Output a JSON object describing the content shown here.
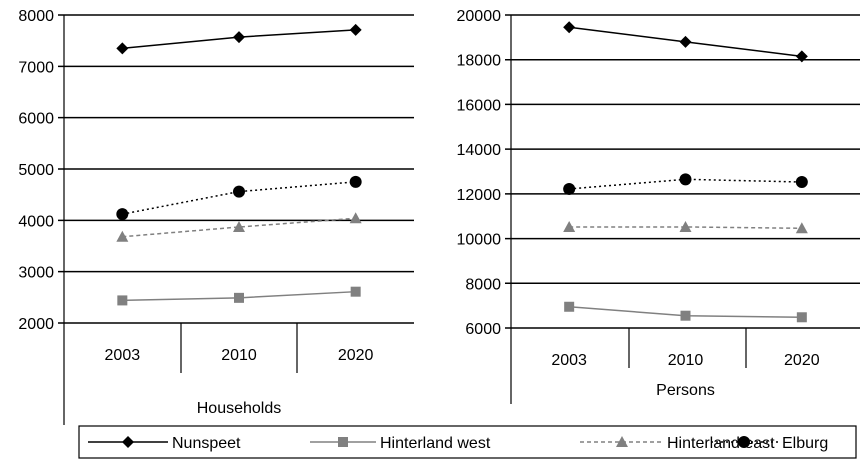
{
  "chart_data": [
    {
      "type": "line",
      "title": "",
      "xlabel": "Households",
      "ylabel": "",
      "categories": [
        "2003",
        "2010",
        "2020"
      ],
      "ylim": [
        2000,
        8000
      ],
      "yticks": [
        "8000",
        "7000",
        "6000",
        "5000",
        "4000",
        "3000",
        "2000"
      ],
      "grid": true,
      "series": [
        {
          "name": "Nunspeet",
          "values": [
            7350,
            7570,
            7710
          ]
        },
        {
          "name": "Hinterland west",
          "values": [
            2440,
            2490,
            2610
          ]
        },
        {
          "name": "Hinterland east",
          "values": [
            3680,
            3870,
            4040
          ]
        },
        {
          "name": "Elburg",
          "values": [
            4120,
            4560,
            4750
          ]
        }
      ]
    },
    {
      "type": "line",
      "title": "",
      "xlabel": "Persons",
      "ylabel": "",
      "categories": [
        "2003",
        "2010",
        "2020"
      ],
      "ylim": [
        6000,
        20000
      ],
      "yticks": [
        "20000",
        "18000",
        "16000",
        "14000",
        "12000",
        "10000",
        "8000",
        "6000"
      ],
      "grid": true,
      "series": [
        {
          "name": "Nunspeet",
          "values": [
            19450,
            18800,
            18150
          ]
        },
        {
          "name": "Hinterland west",
          "values": [
            6950,
            6550,
            6480
          ]
        },
        {
          "name": "Hinterland east",
          "values": [
            10520,
            10520,
            10460
          ]
        },
        {
          "name": "Elburg",
          "values": [
            12220,
            12650,
            12530
          ]
        }
      ]
    }
  ],
  "legend": {
    "placement": "bottom",
    "items": [
      {
        "label": "Nunspeet",
        "marker": "diamond",
        "color": "#000000",
        "dash": "solid"
      },
      {
        "label": "Hinterland west",
        "marker": "square",
        "color": "#808080",
        "dash": "solid"
      },
      {
        "label": "Hinterland east",
        "marker": "triangle",
        "color": "#808080",
        "dash": "dashed"
      },
      {
        "label": "Elburg",
        "marker": "circle",
        "color": "#000000",
        "dash": "dotted"
      }
    ]
  },
  "series_style": {
    "Nunspeet": {
      "marker": "diamond",
      "color": "#000000",
      "dash": "solid"
    },
    "Hinterland west": {
      "marker": "square",
      "color": "#808080",
      "dash": "solid"
    },
    "Hinterland east": {
      "marker": "triangle",
      "color": "#808080",
      "dash": "dashed"
    },
    "Elburg": {
      "marker": "circle",
      "color": "#000000",
      "dash": "dotted"
    }
  }
}
